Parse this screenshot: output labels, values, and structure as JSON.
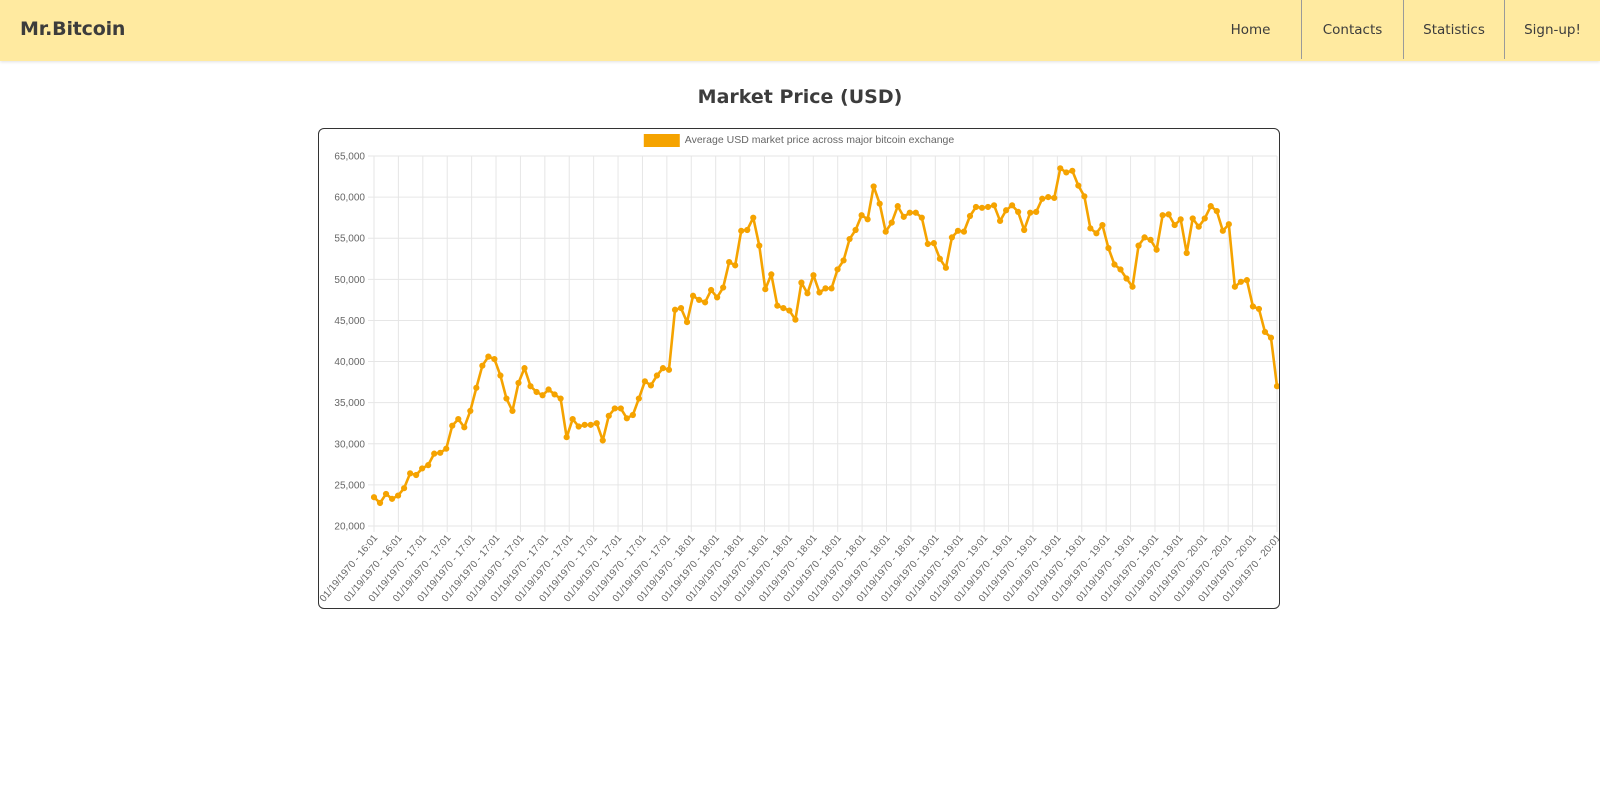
{
  "header": {
    "brand": "Mr.Bitcoin",
    "bg_color": "#ffeaa0",
    "nav": [
      {
        "label": "Home"
      },
      {
        "label": "Contacts"
      },
      {
        "label": "Statistics"
      },
      {
        "label": "Sign-up!"
      }
    ]
  },
  "main": {
    "title": "Market Price (USD)"
  },
  "chart_data": {
    "type": "line",
    "color": "#f5a300",
    "legend_position": "top",
    "grid": true,
    "title": "",
    "xlabel": "",
    "ylabel": "",
    "ylim": [
      20000,
      65000
    ],
    "y_ticks": [
      "65,000",
      "60,000",
      "55,000",
      "50,000",
      "45,000",
      "40,000",
      "35,000",
      "30,000",
      "25,000",
      "20,000"
    ],
    "x_tick_labels": [
      "01/19/1970 - 16:01",
      "01/19/1970 - 16:01",
      "01/19/1970 - 17:01",
      "01/19/1970 - 17:01",
      "01/19/1970 - 17:01",
      "01/19/1970 - 17:01",
      "01/19/1970 - 17:01",
      "01/19/1970 - 17:01",
      "01/19/1970 - 17:01",
      "01/19/1970 - 17:01",
      "01/19/1970 - 17:01",
      "01/19/1970 - 17:01",
      "01/19/1970 - 17:01",
      "01/19/1970 - 18:01",
      "01/19/1970 - 18:01",
      "01/19/1970 - 18:01",
      "01/19/1970 - 18:01",
      "01/19/1970 - 18:01",
      "01/19/1970 - 18:01",
      "01/19/1970 - 18:01",
      "01/19/1970 - 18:01",
      "01/19/1970 - 18:01",
      "01/19/1970 - 18:01",
      "01/19/1970 - 19:01",
      "01/19/1970 - 19:01",
      "01/19/1970 - 19:01",
      "01/19/1970 - 19:01",
      "01/19/1970 - 19:01",
      "01/19/1970 - 19:01",
      "01/19/1970 - 19:01",
      "01/19/1970 - 19:01",
      "01/19/1970 - 19:01",
      "01/19/1970 - 19:01",
      "01/19/1970 - 19:01",
      "01/19/1970 - 20:01",
      "01/19/1970 - 20:01",
      "01/19/1970 - 20:01",
      "01/19/1970 - 20:01"
    ],
    "series": [
      {
        "name": "Average USD market price across major bitcoin exchange",
        "values": [
          23500,
          22800,
          23900,
          23300,
          23700,
          24600,
          26400,
          26200,
          27000,
          27400,
          28800,
          28900,
          29400,
          32200,
          33000,
          32000,
          34000,
          36800,
          39500,
          40600,
          40300,
          38300,
          35500,
          34000,
          37400,
          39200,
          37000,
          36300,
          35900,
          36600,
          36000,
          35500,
          30800,
          33000,
          32100,
          32300,
          32300,
          32500,
          30400,
          33400,
          34300,
          34300,
          33100,
          33500,
          35500,
          37600,
          37100,
          38300,
          39200,
          39000,
          46300,
          46500,
          44800,
          48000,
          47500,
          47200,
          48700,
          47800,
          49000,
          52100,
          51700,
          55900,
          56000,
          57500,
          54100,
          48800,
          50600,
          46800,
          46500,
          46200,
          45100,
          49600,
          48300,
          50500,
          48400,
          48900,
          48900,
          51200,
          52300,
          54900,
          56000,
          57800,
          57300,
          61300,
          59200,
          55800,
          56900,
          58900,
          57600,
          58100,
          58100,
          57500,
          54300,
          54400,
          52500,
          51400,
          55100,
          55900,
          55800,
          57700,
          58800,
          58700,
          58800,
          59000,
          57100,
          58400,
          59000,
          58200,
          56000,
          58100,
          58200,
          59800,
          60000,
          59900,
          63500,
          63000,
          63200,
          61400,
          60100,
          56200,
          55600,
          56600,
          53800,
          51800,
          51200,
          50100,
          49100,
          54100,
          55100,
          54800,
          53600,
          57800,
          57900,
          56600,
          57300,
          53200,
          57400,
          56400,
          57400,
          58900,
          58300,
          55900,
          56700,
          49100,
          49700,
          49900,
          46700,
          46400,
          43600,
          42900,
          37000
        ]
      }
    ]
  }
}
